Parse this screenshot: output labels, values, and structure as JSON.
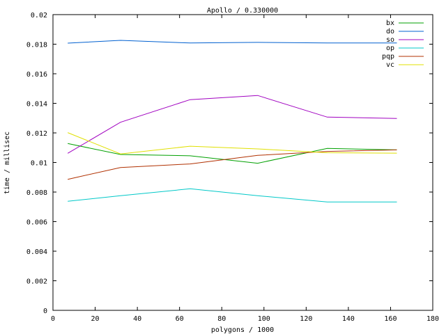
{
  "chart_data": {
    "type": "line",
    "title": "Apollo / 0.330000",
    "xlabel": "polygons / 1000",
    "ylabel": "time / millisec",
    "xlim": [
      0,
      180
    ],
    "ylim": [
      0,
      0.02
    ],
    "x_ticks": [
      "0",
      "20",
      "40",
      "60",
      "80",
      "100",
      "120",
      "140",
      "160",
      "180"
    ],
    "y_ticks": [
      "0",
      "0.002",
      "0.004",
      "0.006",
      "0.008",
      "0.01",
      "0.012",
      "0.014",
      "0.016",
      "0.018",
      "0.02"
    ],
    "x_tick_values": [
      0,
      20,
      40,
      60,
      80,
      100,
      120,
      140,
      160,
      180
    ],
    "y_tick_values": [
      0,
      0.002,
      0.004,
      0.006,
      0.008,
      0.01,
      0.012,
      0.014,
      0.016,
      0.018,
      0.02
    ],
    "x": [
      7,
      32,
      65,
      97,
      130,
      163
    ],
    "legend_position": "top-right",
    "grid": false,
    "series": [
      {
        "name": "bx",
        "color": "#00a000",
        "values": [
          0.01128,
          0.01054,
          0.01045,
          0.00995,
          0.01095,
          0.01085
        ]
      },
      {
        "name": "do",
        "color": "#0060d0",
        "values": [
          0.01807,
          0.01826,
          0.01808,
          0.01812,
          0.01808,
          0.01808
        ]
      },
      {
        "name": "so",
        "color": "#a000c0",
        "values": [
          0.01062,
          0.01272,
          0.01425,
          0.01453,
          0.01307,
          0.01298
        ]
      },
      {
        "name": "op",
        "color": "#00c8c8",
        "values": [
          0.00738,
          0.00775,
          0.00822,
          0.00775,
          0.00733,
          0.00733
        ]
      },
      {
        "name": "pqp",
        "color": "#b03000",
        "values": [
          0.00886,
          0.00966,
          0.0099,
          0.01048,
          0.01075,
          0.01085
        ]
      },
      {
        "name": "vc",
        "color": "#e0e000",
        "values": [
          0.01202,
          0.01058,
          0.0111,
          0.01092,
          0.01066,
          0.01063
        ]
      }
    ]
  }
}
